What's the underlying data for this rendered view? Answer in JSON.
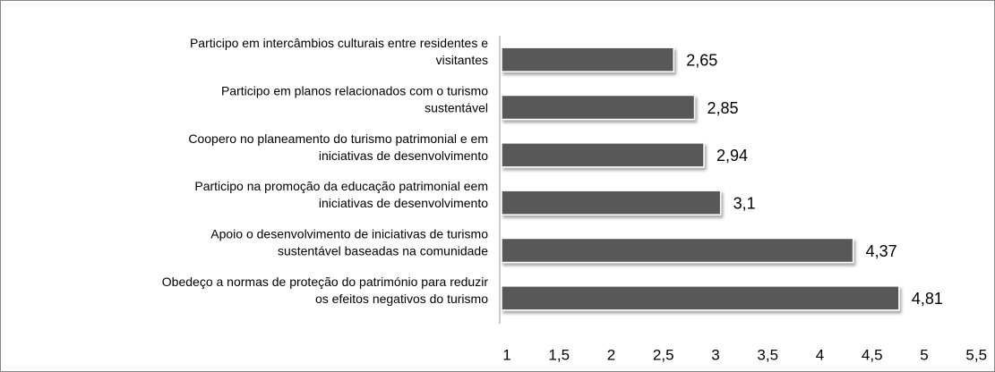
{
  "chart_data": {
    "type": "barh",
    "categories": [
      [
        "Participo em intercâmbios culturais entre residentes e",
        "visitantes"
      ],
      [
        "Participo em planos relacionados com o turismo",
        "sustentável"
      ],
      [
        "Coopero no planeamento do turismo patrimonial e em",
        "iniciativas de desenvolvimento"
      ],
      [
        "Participo na promoção da educação patrimonial eem",
        "iniciativas de desenvolvimento"
      ],
      [
        "Apoio o desenvolvimento de iniciativas de turismo",
        "sustentável baseadas na comunidade"
      ],
      [
        "Obedeço a normas de proteção do património para reduzir",
        "os efeitos negativos do turismo"
      ]
    ],
    "values": [
      2.65,
      2.85,
      2.94,
      3.1,
      4.37,
      4.81
    ],
    "value_labels": [
      "2,65",
      "2,85",
      "2,94",
      "3,1",
      "4,37",
      "4,81"
    ],
    "color": "#595959",
    "xlim": [
      1,
      5.5
    ],
    "xticks": [
      1,
      {
        "value": 1.5,
        "label": "1,5"
      },
      2,
      {
        "value": 2.5,
        "label": "2,5"
      },
      3,
      {
        "value": 3.5,
        "label": "3,5"
      },
      4,
      {
        "value": 4.5,
        "label": "4,5"
      },
      5,
      {
        "value": 5.5,
        "label": "5,5"
      }
    ]
  }
}
